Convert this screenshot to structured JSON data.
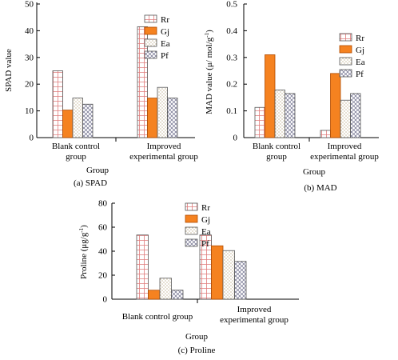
{
  "chart_data": [
    {
      "type": "bar",
      "caption": "(a) SPAD",
      "ylabel": "SPAD value",
      "xlabel": "Group",
      "ylim": [
        0,
        50
      ],
      "yticks": [
        0,
        10,
        20,
        30,
        40,
        50
      ],
      "categories": [
        [
          "Blank control",
          "group"
        ],
        [
          "Improved",
          "experimental group"
        ]
      ],
      "series": [
        {
          "name": "Rr",
          "pattern": "grid",
          "values": [
            25,
            41.5
          ]
        },
        {
          "name": "Gj",
          "pattern": "orange",
          "values": [
            10.3,
            14.8
          ]
        },
        {
          "name": "Ea",
          "pattern": "dots",
          "values": [
            14.8,
            18.8
          ]
        },
        {
          "name": "Pf",
          "pattern": "cross",
          "values": [
            12.5,
            14.8
          ]
        }
      ],
      "legend_position": "top-right"
    },
    {
      "type": "bar",
      "caption": "(b) MAD",
      "ylabel": "MAD value (μ/ mol/g",
      "ylabel_sup": "-1",
      "ylabel_tail": ")",
      "xlabel": "Group",
      "ylim": [
        0,
        0.5
      ],
      "yticks": [
        0,
        0.1,
        0.2,
        0.3,
        0.4,
        0.5
      ],
      "categories": [
        [
          "Blank control",
          "group"
        ],
        [
          "Improved",
          "experimental group"
        ]
      ],
      "series": [
        {
          "name": "Rr",
          "pattern": "grid",
          "values": [
            0.113,
            0.027
          ]
        },
        {
          "name": "Gj",
          "pattern": "orange",
          "values": [
            0.31,
            0.24
          ]
        },
        {
          "name": "Ea",
          "pattern": "dots",
          "values": [
            0.178,
            0.14
          ]
        },
        {
          "name": "Pf",
          "pattern": "cross",
          "values": [
            0.165,
            0.165
          ]
        }
      ],
      "legend_position": "top-right"
    },
    {
      "type": "bar",
      "caption": "(c)  Proline",
      "ylabel": "Proline (μg/g",
      "ylabel_sup": "-1",
      "ylabel_tail": ")",
      "xlabel": "Group",
      "ylim": [
        0,
        80
      ],
      "yticks": [
        0,
        20,
        40,
        60,
        80
      ],
      "categories": [
        [
          "Blank control group"
        ],
        [
          "Improved",
          "experimental group"
        ]
      ],
      "series": [
        {
          "name": "Rr",
          "pattern": "grid",
          "values": [
            53.5,
            53.5
          ]
        },
        {
          "name": "Gj",
          "pattern": "orange",
          "values": [
            7.5,
            44.5
          ]
        },
        {
          "name": "Ea",
          "pattern": "dots",
          "values": [
            17.5,
            40.5
          ]
        },
        {
          "name": "Pf",
          "pattern": "cross",
          "values": [
            7.5,
            31.5
          ]
        }
      ],
      "legend_position": "top-center"
    }
  ],
  "colors": {
    "grid_line": "#e07b7b",
    "orange": "#f58220",
    "orange_stroke": "#b04a00",
    "dots": "#8a6a2a",
    "axis": "#000000"
  }
}
